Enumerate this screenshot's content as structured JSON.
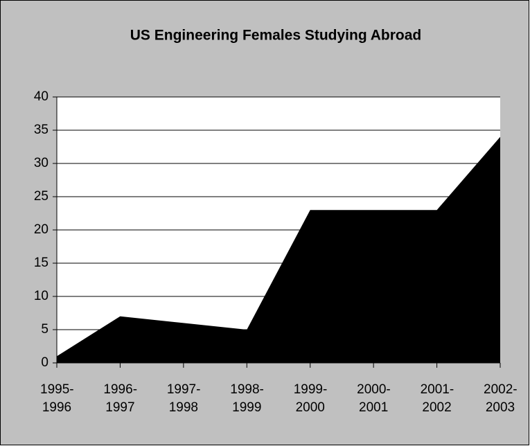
{
  "chart_data": {
    "type": "area",
    "title": "US Engineering Females Studying Abroad",
    "categories": [
      "1995-1996",
      "1996-1997",
      "1997-1998",
      "1998-1999",
      "1999-2000",
      "2000-2001",
      "2001-2002",
      "2002-2003"
    ],
    "values": [
      1,
      7,
      6,
      5,
      23,
      23,
      23,
      34
    ],
    "color": "#000000",
    "ylim": [
      0,
      40
    ],
    "yticks": [
      0,
      5,
      10,
      15,
      20,
      25,
      30,
      35,
      40
    ],
    "grid": true
  }
}
